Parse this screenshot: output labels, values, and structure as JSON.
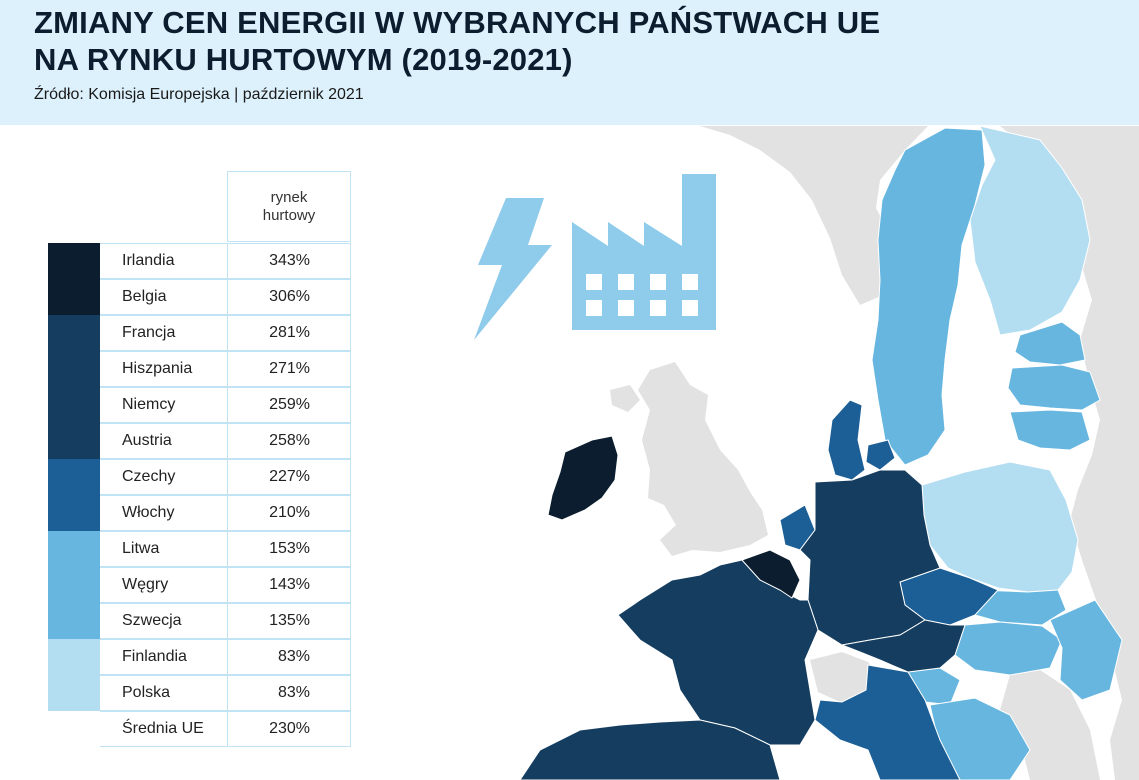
{
  "header": {
    "title_line1": "ZMIANY CEN ENERGII W WYBRANYCH PAŃSTWACH UE",
    "title_line2": "NA RYNKU HURTOWYM (2019-2021)",
    "source": "Źródło: Komisja Europejska | październik 2021"
  },
  "table": {
    "column_header": "rynek\nhurtowy",
    "rows": [
      {
        "country": "Irlandia",
        "value": "343%",
        "color": "#0b1d2e"
      },
      {
        "country": "Belgia",
        "value": "306%",
        "color": "#0b1d2e"
      },
      {
        "country": "Francja",
        "value": "281%",
        "color": "#143d5f"
      },
      {
        "country": "Hiszpania",
        "value": "271%",
        "color": "#143d5f"
      },
      {
        "country": "Niemcy",
        "value": "259%",
        "color": "#143d5f"
      },
      {
        "country": "Austria",
        "value": "258%",
        "color": "#143d5f"
      },
      {
        "country": "Czechy",
        "value": "227%",
        "color": "#1c5f96"
      },
      {
        "country": "Włochy",
        "value": "210%",
        "color": "#1c5f96"
      },
      {
        "country": "Litwa",
        "value": "153%",
        "color": "#66b6e0"
      },
      {
        "country": "Węgry",
        "value": "143%",
        "color": "#66b6e0"
      },
      {
        "country": "Szwecja",
        "value": "135%",
        "color": "#66b6e0"
      },
      {
        "country": "Finlandia",
        "value": "83%",
        "color": "#b3ddf1"
      },
      {
        "country": "Polska",
        "value": "83%",
        "color": "#b3ddf1"
      }
    ],
    "average": {
      "country": "Średnia UE",
      "value": "230%"
    }
  },
  "colors": {
    "header_bg": "#dcf1fb",
    "non_eu_land": "#e2e2e2",
    "icon": "#8fcbea"
  },
  "icons": [
    "lightning-bolt-icon",
    "factory-icon"
  ]
}
